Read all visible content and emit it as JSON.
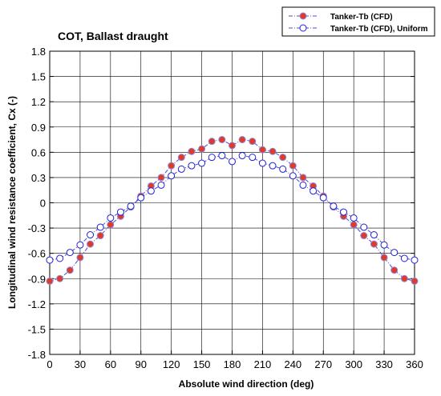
{
  "chart_data": {
    "type": "line",
    "title": "COT, Ballast draught",
    "xlabel": "Absolute wind direction (deg)",
    "ylabel": "Longitudinal wind resistance coefficient, Cx (-)",
    "xlim": [
      0,
      360
    ],
    "ylim": [
      -1.8,
      1.8
    ],
    "xticks": [
      0,
      30,
      60,
      90,
      120,
      150,
      180,
      210,
      240,
      270,
      300,
      330,
      360
    ],
    "yticks": [
      -1.8,
      -1.5,
      -1.2,
      -0.9,
      -0.6,
      -0.3,
      0,
      0.3,
      0.6,
      0.9,
      1.2,
      1.5,
      1.8
    ],
    "xtick_labels": [
      "0",
      "30",
      "60",
      "90",
      "120",
      "150",
      "180",
      "210",
      "240",
      "270",
      "300",
      "330",
      "360"
    ],
    "ytick_labels": [
      "-1.8",
      "-1.5",
      "-1.2",
      "-0.9",
      "-0.6",
      "-0.3",
      "0",
      "0.3",
      "0.6",
      "0.9",
      "1.2",
      "1.5",
      "1.8"
    ],
    "grid": true,
    "legend_position": "top-right",
    "x": [
      0,
      10,
      20,
      30,
      40,
      50,
      60,
      70,
      80,
      90,
      100,
      110,
      120,
      130,
      140,
      150,
      160,
      170,
      180,
      190,
      200,
      210,
      220,
      230,
      240,
      250,
      260,
      270,
      280,
      290,
      300,
      310,
      320,
      330,
      340,
      350,
      360
    ],
    "series": [
      {
        "name": "Tanker-Tb (CFD)",
        "marker": "filled-circle",
        "line_color": "#4b4bd6",
        "marker_fill": "#e03a2a",
        "marker_edge": "#8a8ae0",
        "values": [
          -0.93,
          -0.9,
          -0.8,
          -0.65,
          -0.49,
          -0.39,
          -0.26,
          -0.16,
          -0.05,
          0.08,
          0.2,
          0.3,
          0.44,
          0.54,
          0.61,
          0.64,
          0.73,
          0.75,
          0.68,
          0.75,
          0.73,
          0.63,
          0.61,
          0.54,
          0.44,
          0.3,
          0.2,
          0.08,
          -0.05,
          -0.16,
          -0.26,
          -0.39,
          -0.49,
          -0.65,
          -0.8,
          -0.9,
          -0.93
        ]
      },
      {
        "name": "Tanker-Tb (CFD), Uniform",
        "marker": "open-circle",
        "line_color": "#4b4bd6",
        "marker_fill": "#ffffff",
        "marker_edge": "#2020d8",
        "values": [
          -0.68,
          -0.66,
          -0.59,
          -0.5,
          -0.38,
          -0.29,
          -0.18,
          -0.11,
          -0.04,
          0.06,
          0.14,
          0.21,
          0.32,
          0.4,
          0.44,
          0.47,
          0.54,
          0.56,
          0.49,
          0.56,
          0.54,
          0.47,
          0.44,
          0.4,
          0.32,
          0.21,
          0.14,
          0.06,
          -0.04,
          -0.11,
          -0.18,
          -0.29,
          -0.38,
          -0.5,
          -0.59,
          -0.66,
          -0.68
        ]
      }
    ]
  }
}
